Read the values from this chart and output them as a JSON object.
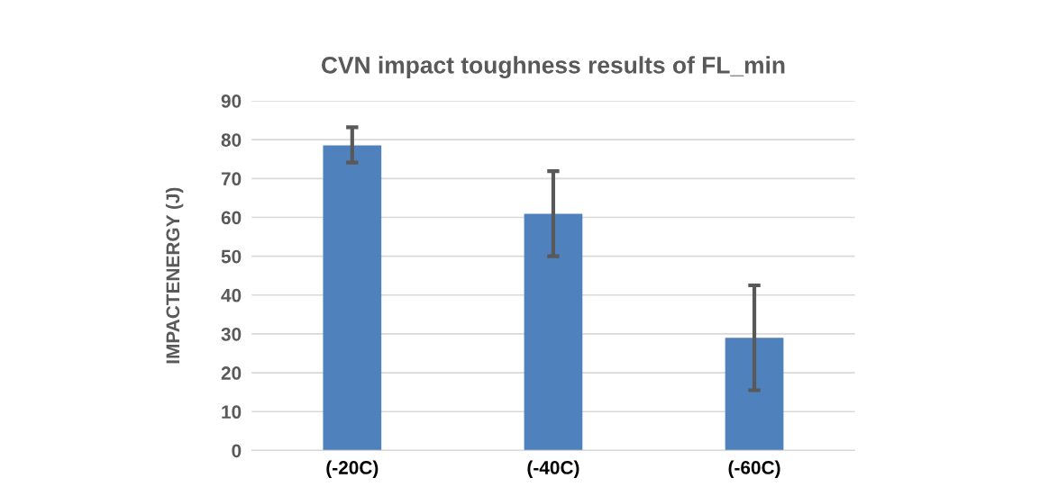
{
  "chart_data": {
    "type": "bar",
    "title": "CVN impact toughness results of FL_min",
    "ylabel": "IMPACTENERGY (J)",
    "categories": [
      "(-20C)",
      "(-40C)",
      "(-60C)"
    ],
    "values": [
      78.5,
      60.9,
      29.0
    ],
    "errors": [
      [
        74.1,
        83.2
      ],
      [
        50.0,
        71.9
      ],
      [
        15.5,
        42.5
      ]
    ],
    "color": "#4f81bd",
    "ylim": [
      0,
      90
    ],
    "yticks": [
      0,
      10,
      20,
      30,
      40,
      50,
      60,
      70,
      80,
      90
    ],
    "grid": "y",
    "legend": false
  }
}
